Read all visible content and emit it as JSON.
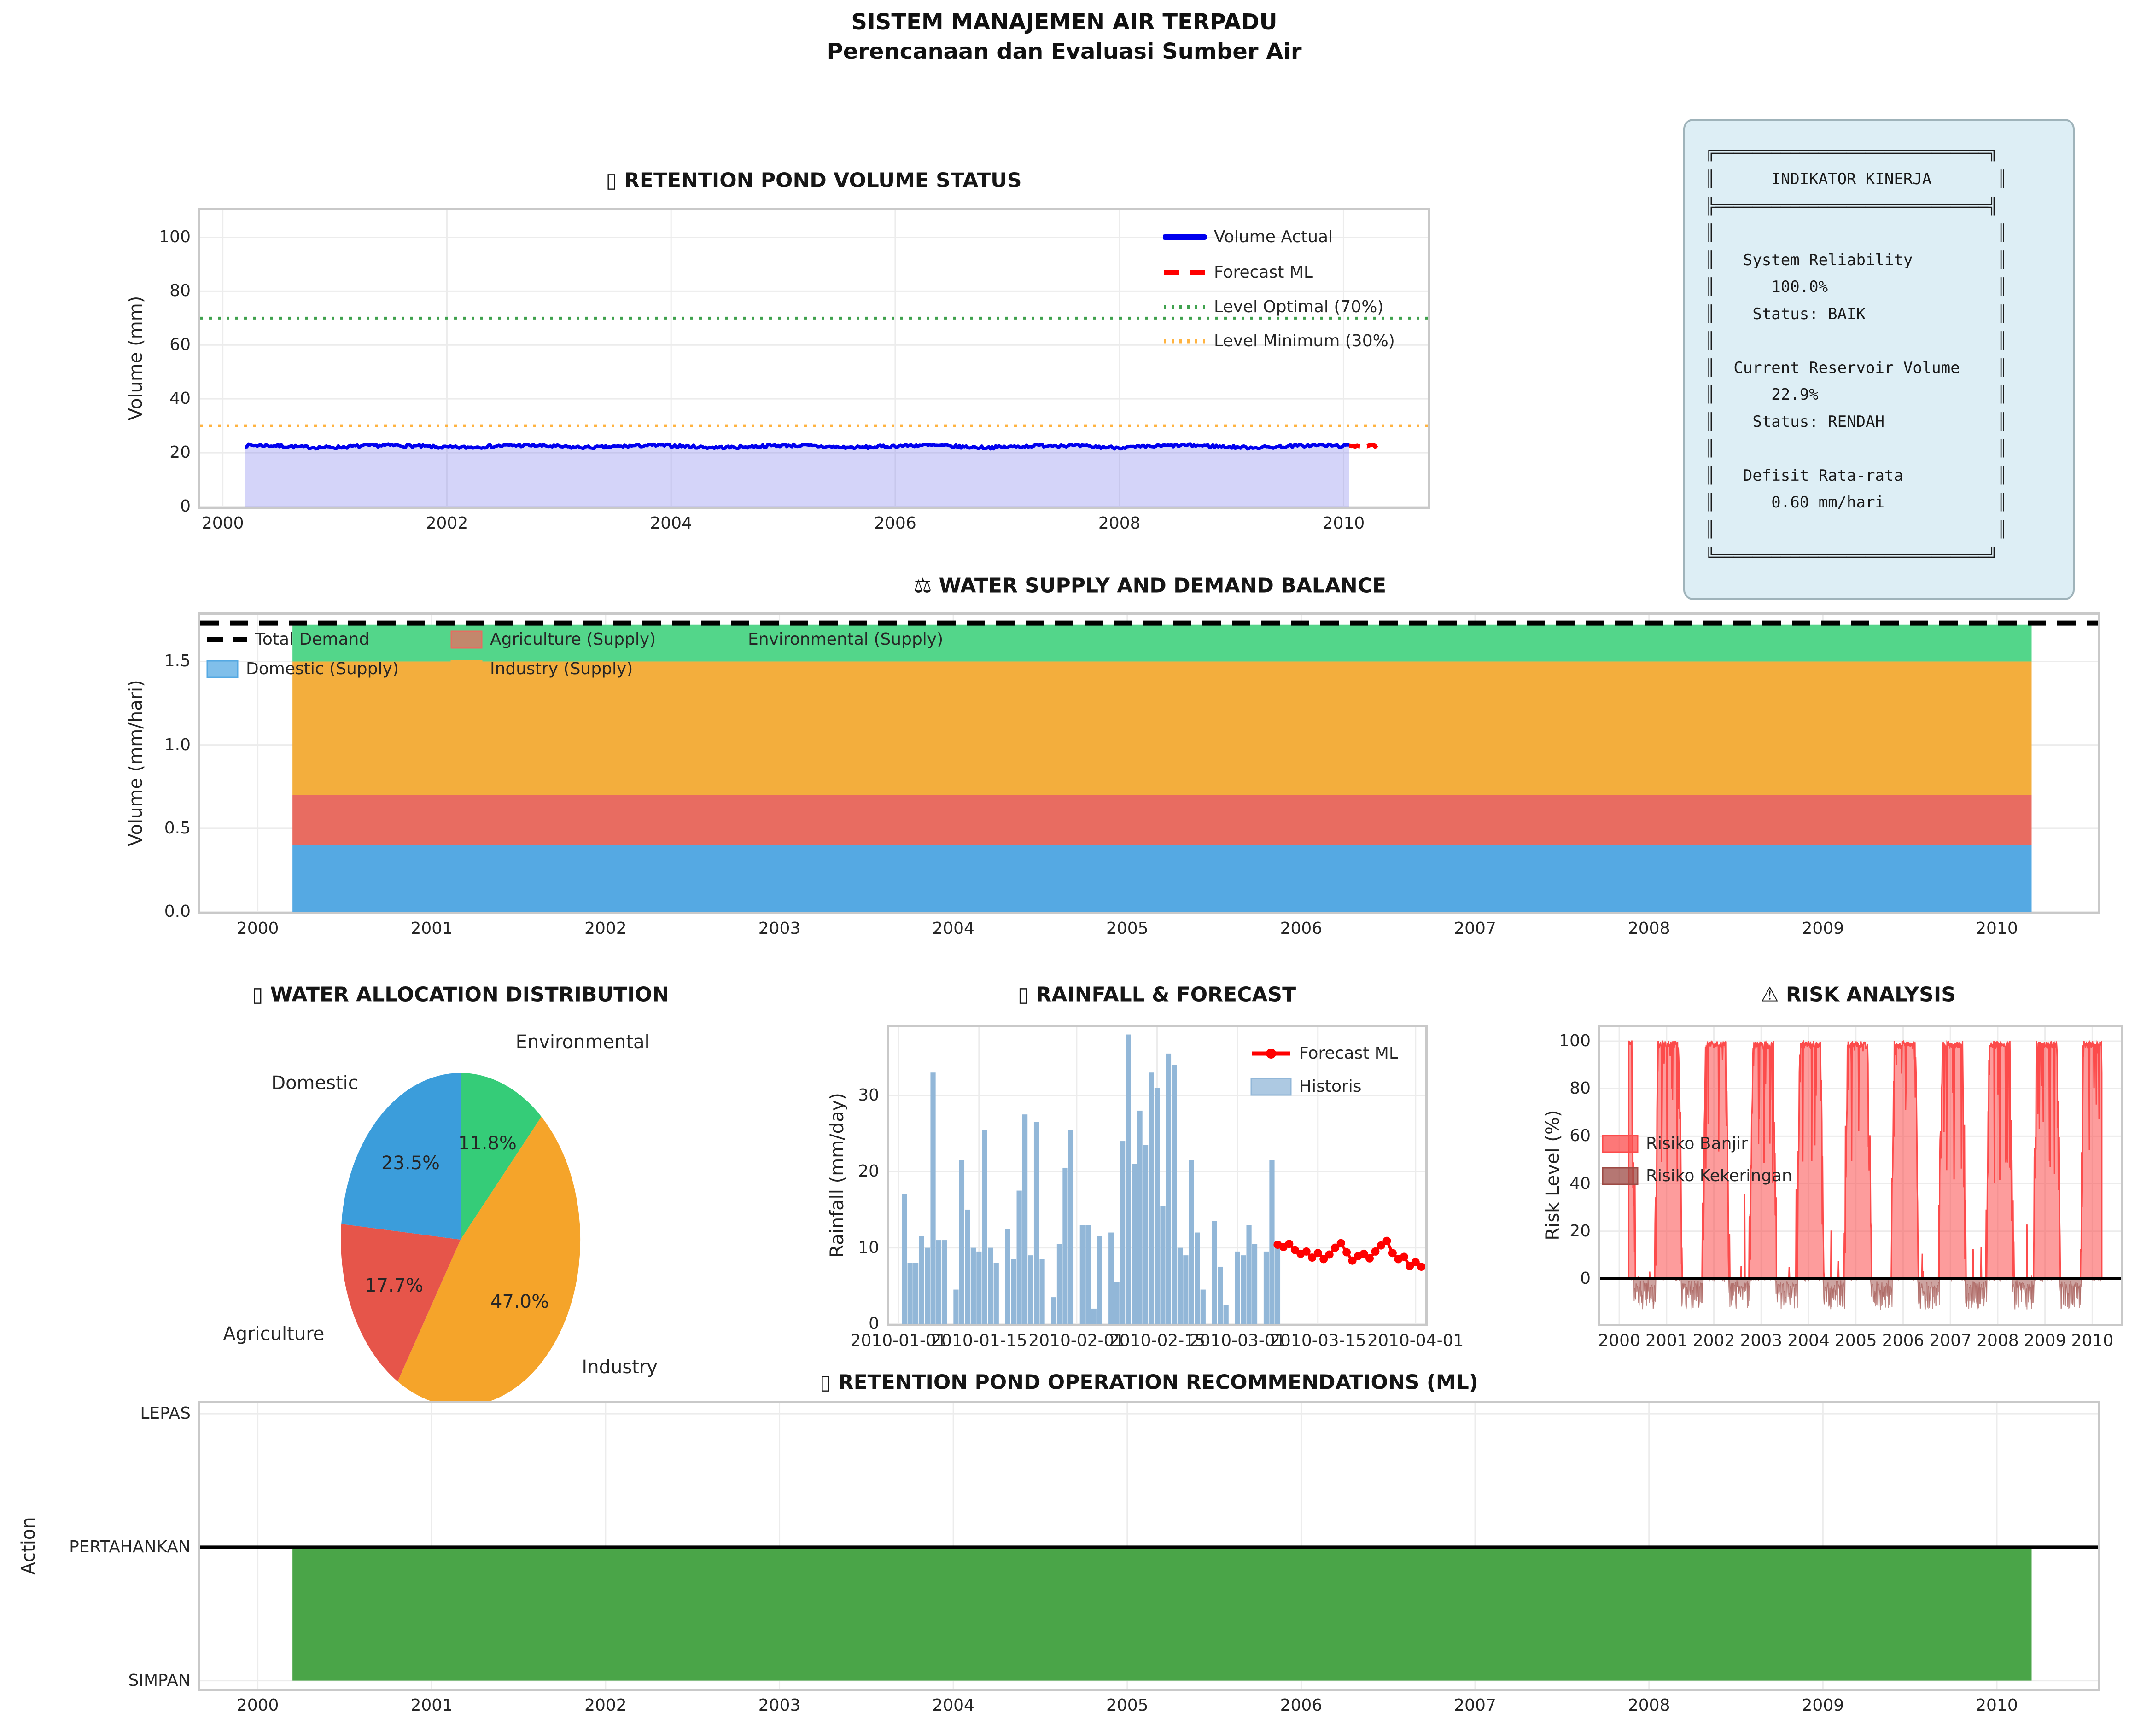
{
  "figure": {
    "title": "SISTEM MANAJEMEN AIR TERPADU",
    "subtitle": "Perencanaan dan Evaluasi Sumber Air"
  },
  "panel": {
    "lines": [
      "╔═════════════════════════════╗",
      "║      INDIKATOR KINERJA       ║",
      "╠═════════════════════════════╣",
      "║                              ║",
      "║   System Reliability         ║",
      "║      100.0%                  ║",
      "║    Status: BAIK              ║",
      "║                              ║",
      "║  Current Reservoir Volume    ║",
      "║      22.9%                   ║",
      "║    Status: RENDAH            ║",
      "║                              ║",
      "║   Defisit Rata-rata          ║",
      "║      0.60 mm/hari            ║",
      "║                              ║",
      "╚═════════════════════════════╝"
    ]
  },
  "chart_data": [
    {
      "type": "line",
      "title": "▯ RETENTION POND VOLUME STATUS",
      "ylabel": "Volume (mm)",
      "xlim": [
        1999.8,
        2010.75
      ],
      "ylim": [
        0,
        110
      ],
      "xticks": [
        2000,
        2002,
        2004,
        2006,
        2008,
        2010
      ],
      "yticks": [
        0,
        20,
        40,
        60,
        80,
        100
      ],
      "series": {
        "name": "Volume Actual",
        "color": "#0000ee",
        "fill": "#8585ef",
        "x0": 2000.2,
        "x1": 2010.05,
        "n": 640,
        "base": 22.35,
        "noise": 1.15,
        "seed": 7
      },
      "forecast": {
        "name": "Forecast ML",
        "color": "#ff0000",
        "x0": 2010.05,
        "x1": 2010.3,
        "base": 22.6
      },
      "hlines": [
        {
          "label": "Level Optimal (70%)",
          "y": 70,
          "color": "#3fa14d"
        },
        {
          "label": "Level Minimum (30%)",
          "y": 30,
          "color": "#ffb340"
        }
      ],
      "legend": [
        "Volume Actual",
        "Forecast ML",
        "Level Optimal (70%)",
        "Level Minimum (30%)"
      ]
    },
    {
      "type": "stack",
      "title": "⚖ WATER SUPPLY AND DEMAND BALANCE",
      "ylabel": "Volume (mm/hari)",
      "xlim": [
        1999.67,
        2010.58
      ],
      "ylim": [
        0,
        1.78
      ],
      "xticks": [
        2000,
        2001,
        2002,
        2003,
        2004,
        2005,
        2006,
        2007,
        2008,
        2009,
        2010
      ],
      "yticks": [
        "0.0",
        "0.5",
        "1.0",
        "1.5"
      ],
      "xrange": [
        2000.2,
        2010.2
      ],
      "layers": [
        {
          "name": "Domestic (Supply)",
          "color": "#55a9e3",
          "value": 0.4
        },
        {
          "name": "Agriculture (Supply)",
          "color": "#e86c61",
          "value": 0.3
        },
        {
          "name": "Industry (Supply)",
          "color": "#f3ae3d",
          "value": 0.8
        },
        {
          "name": "Environmental (Supply)",
          "color": "#53d68a",
          "value": 0.22
        }
      ],
      "demand": {
        "name": "Total Demand",
        "value": 1.73,
        "color": "#000000"
      }
    },
    {
      "type": "pie",
      "title": "▯ WATER ALLOCATION DISTRIBUTION",
      "labels": [
        "Environmental",
        "Industry",
        "Agriculture",
        "Domestic"
      ],
      "values": [
        11.8,
        47.0,
        17.7,
        23.5
      ],
      "pcts": [
        "11.8%",
        "47.0%",
        "17.7%",
        "23.5%"
      ],
      "colors": [
        "#35cc78",
        "#f5a42a",
        "#e6554a",
        "#3b9ddb"
      ]
    },
    {
      "type": "rain",
      "title": "▯ RAINFALL & FORECAST",
      "ylabel": "Rainfall (mm/day)",
      "ylim": [
        0,
        39
      ],
      "yticks": [
        0,
        10,
        20,
        30
      ],
      "xticks": [
        [
          0,
          "2010-01-01"
        ],
        [
          14,
          "2010-01-15"
        ],
        [
          31,
          "2010-02-01"
        ],
        [
          45,
          "2010-02-15"
        ],
        [
          59,
          "2010-03-01"
        ],
        [
          73,
          "2010-03-15"
        ],
        [
          90,
          "2010-04-01"
        ]
      ],
      "bar_color": "#92b7d8",
      "bars_start_day": 1,
      "bars": [
        17,
        8,
        8,
        11.5,
        10,
        33,
        11,
        11,
        0,
        4.5,
        21.5,
        15,
        10,
        9.5,
        25.5,
        10,
        8,
        0,
        12.5,
        8.5,
        17.5,
        27.5,
        9,
        26.5,
        8.5,
        0,
        3.5,
        10.5,
        20.5,
        25.5,
        0,
        13,
        13,
        2,
        11.5,
        0,
        12,
        5.5,
        24,
        38,
        21,
        28,
        23.5,
        33,
        31,
        15.5,
        35.5,
        34,
        10,
        9,
        21.5,
        12,
        4.5,
        0,
        13.5,
        7.5,
        2.5,
        0,
        9.5,
        9,
        13,
        10.5,
        0,
        9.5,
        21.5,
        10.5
      ],
      "forecast_color": "#ff0000",
      "forecast_start_day": 66,
      "forecast": [
        10.4,
        10.1,
        10.5,
        9.7,
        9.2,
        9.5,
        8.7,
        9.3,
        8.5,
        9.1,
        10.0,
        10.6,
        9.4,
        8.3,
        8.9,
        9.2,
        8.6,
        9.5,
        10.3,
        10.9,
        9.3,
        8.5,
        8.8,
        7.6,
        8.1,
        7.5
      ],
      "legend": [
        "Forecast ML",
        "Historis"
      ]
    },
    {
      "type": "risk",
      "title": "⚠ RISK ANALYSIS",
      "ylabel": "Risk Level (%)",
      "xlim": [
        1999.6,
        2010.6
      ],
      "ylim": [
        -19,
        106
      ],
      "xticks": [
        2000,
        2001,
        2002,
        2003,
        2004,
        2005,
        2006,
        2007,
        2008,
        2009,
        2010
      ],
      "yticks": [
        0,
        20,
        40,
        60,
        80,
        100
      ],
      "flood": {
        "name": "Risiko Banjir",
        "color": "#fc4b4b",
        "high": 100,
        "low": 0,
        "seed": 3
      },
      "drought": {
        "name": "Risiko Kekeringan",
        "color": "#9c4a44",
        "min": -15,
        "seed": 11
      },
      "x0": 2000.2,
      "x1": 2010.2
    },
    {
      "type": "ops",
      "title": "▯ RETENTION POND OPERATION RECOMMENDATIONS (ML)",
      "ylabel": "Action",
      "xlim": [
        1999.67,
        2010.58
      ],
      "ylim": [
        -0.06,
        2.08
      ],
      "xticks": [
        2000,
        2001,
        2002,
        2003,
        2004,
        2005,
        2006,
        2007,
        2008,
        2009,
        2010
      ],
      "yticks": [
        [
          0,
          "SIMPAN"
        ],
        [
          1,
          "PERTAHANKAN"
        ],
        [
          2,
          "LEPAS"
        ]
      ],
      "fill": {
        "color": "#4aa548",
        "x0": 2000.2,
        "x1": 2010.2,
        "y0": 0,
        "y1": 1
      },
      "hline": {
        "y": 1,
        "color": "#000000"
      }
    }
  ]
}
